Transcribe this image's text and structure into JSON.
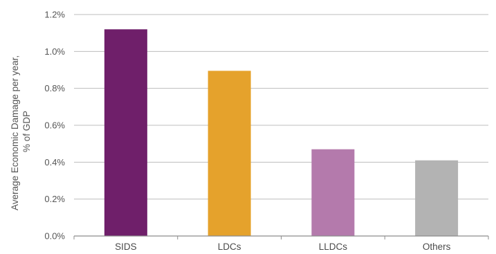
{
  "chart_data": {
    "type": "bar",
    "title": "",
    "ylabel_lines": [
      "Average Economic Damage per year,",
      "% of GDP"
    ],
    "xlabel": "",
    "categories": [
      "SIDS",
      "LDCs",
      "LLDCs",
      "Others"
    ],
    "values": [
      1.12,
      0.895,
      0.47,
      0.41
    ],
    "bar_colors": [
      "#6f1f6a",
      "#e5a22c",
      "#b47aac",
      "#b3b3b3"
    ],
    "ylim": [
      0,
      1.2
    ],
    "yticks": [
      0,
      0.2,
      0.4,
      0.6,
      0.8,
      1.0,
      1.2
    ],
    "ytick_labels": [
      "0.0%",
      "0.2%",
      "0.4%",
      "0.6%",
      "0.8%",
      "1.0%",
      "1.2%"
    ],
    "grid": true,
    "gridline_color": "#bdbdbd"
  }
}
